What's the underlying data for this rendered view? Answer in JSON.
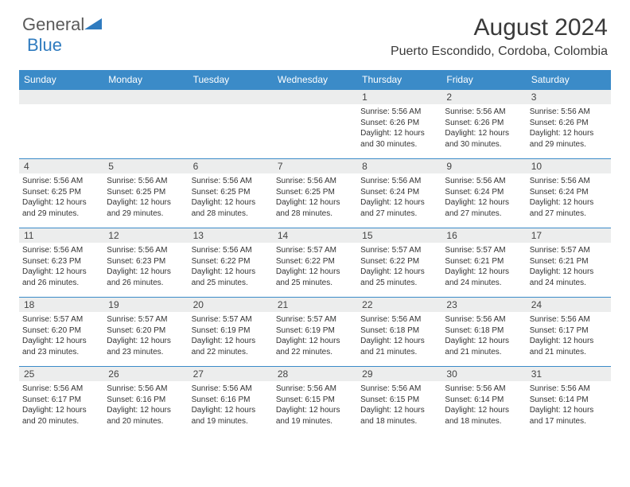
{
  "logo": {
    "general": "General",
    "blue": "Blue"
  },
  "header": {
    "month_title": "August 2024",
    "location": "Puerto Escondido, Cordoba, Colombia"
  },
  "weekdays": [
    "Sunday",
    "Monday",
    "Tuesday",
    "Wednesday",
    "Thursday",
    "Friday",
    "Saturday"
  ],
  "colors": {
    "header_bar": "#3b8bc8",
    "daynum_bg": "#eceded",
    "border": "#3b8bc8",
    "text": "#333333",
    "logo_gray": "#5a5a5a",
    "logo_blue": "#2f7bbf"
  },
  "weeks": [
    [
      {
        "empty": true
      },
      {
        "empty": true
      },
      {
        "empty": true
      },
      {
        "empty": true
      },
      {
        "num": "1",
        "sunrise": "Sunrise: 5:56 AM",
        "sunset": "Sunset: 6:26 PM",
        "daylight": "Daylight: 12 hours and 30 minutes."
      },
      {
        "num": "2",
        "sunrise": "Sunrise: 5:56 AM",
        "sunset": "Sunset: 6:26 PM",
        "daylight": "Daylight: 12 hours and 30 minutes."
      },
      {
        "num": "3",
        "sunrise": "Sunrise: 5:56 AM",
        "sunset": "Sunset: 6:26 PM",
        "daylight": "Daylight: 12 hours and 29 minutes."
      }
    ],
    [
      {
        "num": "4",
        "sunrise": "Sunrise: 5:56 AM",
        "sunset": "Sunset: 6:25 PM",
        "daylight": "Daylight: 12 hours and 29 minutes."
      },
      {
        "num": "5",
        "sunrise": "Sunrise: 5:56 AM",
        "sunset": "Sunset: 6:25 PM",
        "daylight": "Daylight: 12 hours and 29 minutes."
      },
      {
        "num": "6",
        "sunrise": "Sunrise: 5:56 AM",
        "sunset": "Sunset: 6:25 PM",
        "daylight": "Daylight: 12 hours and 28 minutes."
      },
      {
        "num": "7",
        "sunrise": "Sunrise: 5:56 AM",
        "sunset": "Sunset: 6:25 PM",
        "daylight": "Daylight: 12 hours and 28 minutes."
      },
      {
        "num": "8",
        "sunrise": "Sunrise: 5:56 AM",
        "sunset": "Sunset: 6:24 PM",
        "daylight": "Daylight: 12 hours and 27 minutes."
      },
      {
        "num": "9",
        "sunrise": "Sunrise: 5:56 AM",
        "sunset": "Sunset: 6:24 PM",
        "daylight": "Daylight: 12 hours and 27 minutes."
      },
      {
        "num": "10",
        "sunrise": "Sunrise: 5:56 AM",
        "sunset": "Sunset: 6:24 PM",
        "daylight": "Daylight: 12 hours and 27 minutes."
      }
    ],
    [
      {
        "num": "11",
        "sunrise": "Sunrise: 5:56 AM",
        "sunset": "Sunset: 6:23 PM",
        "daylight": "Daylight: 12 hours and 26 minutes."
      },
      {
        "num": "12",
        "sunrise": "Sunrise: 5:56 AM",
        "sunset": "Sunset: 6:23 PM",
        "daylight": "Daylight: 12 hours and 26 minutes."
      },
      {
        "num": "13",
        "sunrise": "Sunrise: 5:56 AM",
        "sunset": "Sunset: 6:22 PM",
        "daylight": "Daylight: 12 hours and 25 minutes."
      },
      {
        "num": "14",
        "sunrise": "Sunrise: 5:57 AM",
        "sunset": "Sunset: 6:22 PM",
        "daylight": "Daylight: 12 hours and 25 minutes."
      },
      {
        "num": "15",
        "sunrise": "Sunrise: 5:57 AM",
        "sunset": "Sunset: 6:22 PM",
        "daylight": "Daylight: 12 hours and 25 minutes."
      },
      {
        "num": "16",
        "sunrise": "Sunrise: 5:57 AM",
        "sunset": "Sunset: 6:21 PM",
        "daylight": "Daylight: 12 hours and 24 minutes."
      },
      {
        "num": "17",
        "sunrise": "Sunrise: 5:57 AM",
        "sunset": "Sunset: 6:21 PM",
        "daylight": "Daylight: 12 hours and 24 minutes."
      }
    ],
    [
      {
        "num": "18",
        "sunrise": "Sunrise: 5:57 AM",
        "sunset": "Sunset: 6:20 PM",
        "daylight": "Daylight: 12 hours and 23 minutes."
      },
      {
        "num": "19",
        "sunrise": "Sunrise: 5:57 AM",
        "sunset": "Sunset: 6:20 PM",
        "daylight": "Daylight: 12 hours and 23 minutes."
      },
      {
        "num": "20",
        "sunrise": "Sunrise: 5:57 AM",
        "sunset": "Sunset: 6:19 PM",
        "daylight": "Daylight: 12 hours and 22 minutes."
      },
      {
        "num": "21",
        "sunrise": "Sunrise: 5:57 AM",
        "sunset": "Sunset: 6:19 PM",
        "daylight": "Daylight: 12 hours and 22 minutes."
      },
      {
        "num": "22",
        "sunrise": "Sunrise: 5:56 AM",
        "sunset": "Sunset: 6:18 PM",
        "daylight": "Daylight: 12 hours and 21 minutes."
      },
      {
        "num": "23",
        "sunrise": "Sunrise: 5:56 AM",
        "sunset": "Sunset: 6:18 PM",
        "daylight": "Daylight: 12 hours and 21 minutes."
      },
      {
        "num": "24",
        "sunrise": "Sunrise: 5:56 AM",
        "sunset": "Sunset: 6:17 PM",
        "daylight": "Daylight: 12 hours and 21 minutes."
      }
    ],
    [
      {
        "num": "25",
        "sunrise": "Sunrise: 5:56 AM",
        "sunset": "Sunset: 6:17 PM",
        "daylight": "Daylight: 12 hours and 20 minutes."
      },
      {
        "num": "26",
        "sunrise": "Sunrise: 5:56 AM",
        "sunset": "Sunset: 6:16 PM",
        "daylight": "Daylight: 12 hours and 20 minutes."
      },
      {
        "num": "27",
        "sunrise": "Sunrise: 5:56 AM",
        "sunset": "Sunset: 6:16 PM",
        "daylight": "Daylight: 12 hours and 19 minutes."
      },
      {
        "num": "28",
        "sunrise": "Sunrise: 5:56 AM",
        "sunset": "Sunset: 6:15 PM",
        "daylight": "Daylight: 12 hours and 19 minutes."
      },
      {
        "num": "29",
        "sunrise": "Sunrise: 5:56 AM",
        "sunset": "Sunset: 6:15 PM",
        "daylight": "Daylight: 12 hours and 18 minutes."
      },
      {
        "num": "30",
        "sunrise": "Sunrise: 5:56 AM",
        "sunset": "Sunset: 6:14 PM",
        "daylight": "Daylight: 12 hours and 18 minutes."
      },
      {
        "num": "31",
        "sunrise": "Sunrise: 5:56 AM",
        "sunset": "Sunset: 6:14 PM",
        "daylight": "Daylight: 12 hours and 17 minutes."
      }
    ]
  ]
}
